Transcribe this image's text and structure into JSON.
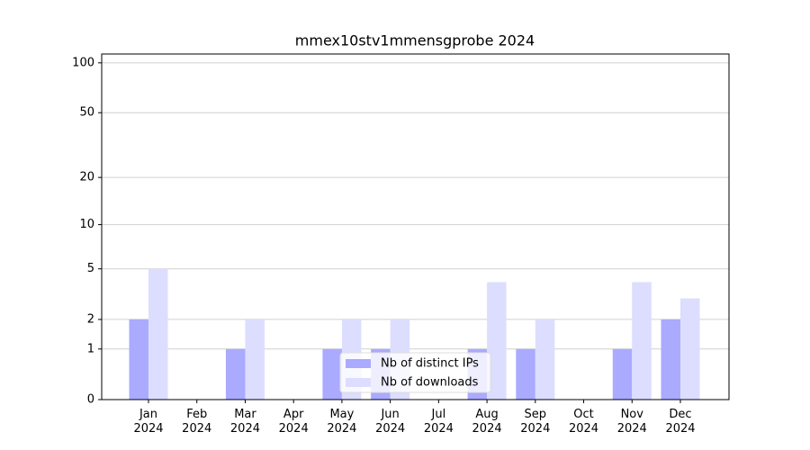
{
  "chart_data": {
    "type": "bar",
    "title": "mmex10stv1mmensgprobe 2024",
    "categories": [
      "Jan\n2024",
      "Feb\n2024",
      "Mar\n2024",
      "Apr\n2024",
      "May\n2024",
      "Jun\n2024",
      "Jul\n2024",
      "Aug\n2024",
      "Sep\n2024",
      "Oct\n2024",
      "Nov\n2024",
      "Dec\n2024"
    ],
    "series": [
      {
        "name": "Nb of distinct IPs",
        "color": "#aaaaff",
        "values": [
          2,
          0,
          1,
          0,
          1,
          1,
          0,
          1,
          1,
          0,
          1,
          2
        ]
      },
      {
        "name": "Nb of downloads",
        "color": "#ddddff",
        "values": [
          5,
          0,
          2,
          0,
          2,
          2,
          0,
          4,
          2,
          0,
          4,
          3
        ]
      }
    ],
    "yscale": "log1p",
    "ylim": [
      0,
      113
    ],
    "yticks": [
      0,
      1,
      2,
      5,
      10,
      20,
      50,
      100
    ],
    "grid": true,
    "legend": "lower center"
  }
}
